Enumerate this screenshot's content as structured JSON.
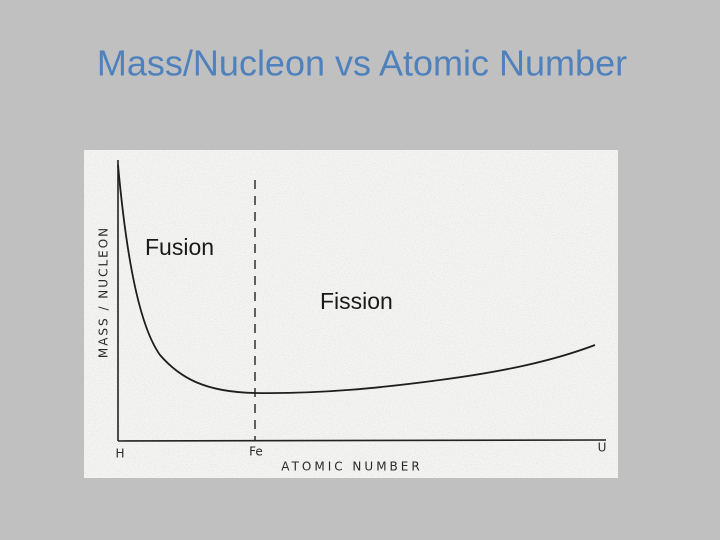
{
  "slide": {
    "title": "Mass/Nucleon vs Atomic Number"
  },
  "figure": {
    "y_axis_label": "MASS / NUCLEON",
    "x_axis_label": "ATOMIC NUMBER",
    "x_labels": [
      "H",
      "Fe",
      "U"
    ],
    "annotations": [
      "Fusion",
      "Fission"
    ]
  }
}
